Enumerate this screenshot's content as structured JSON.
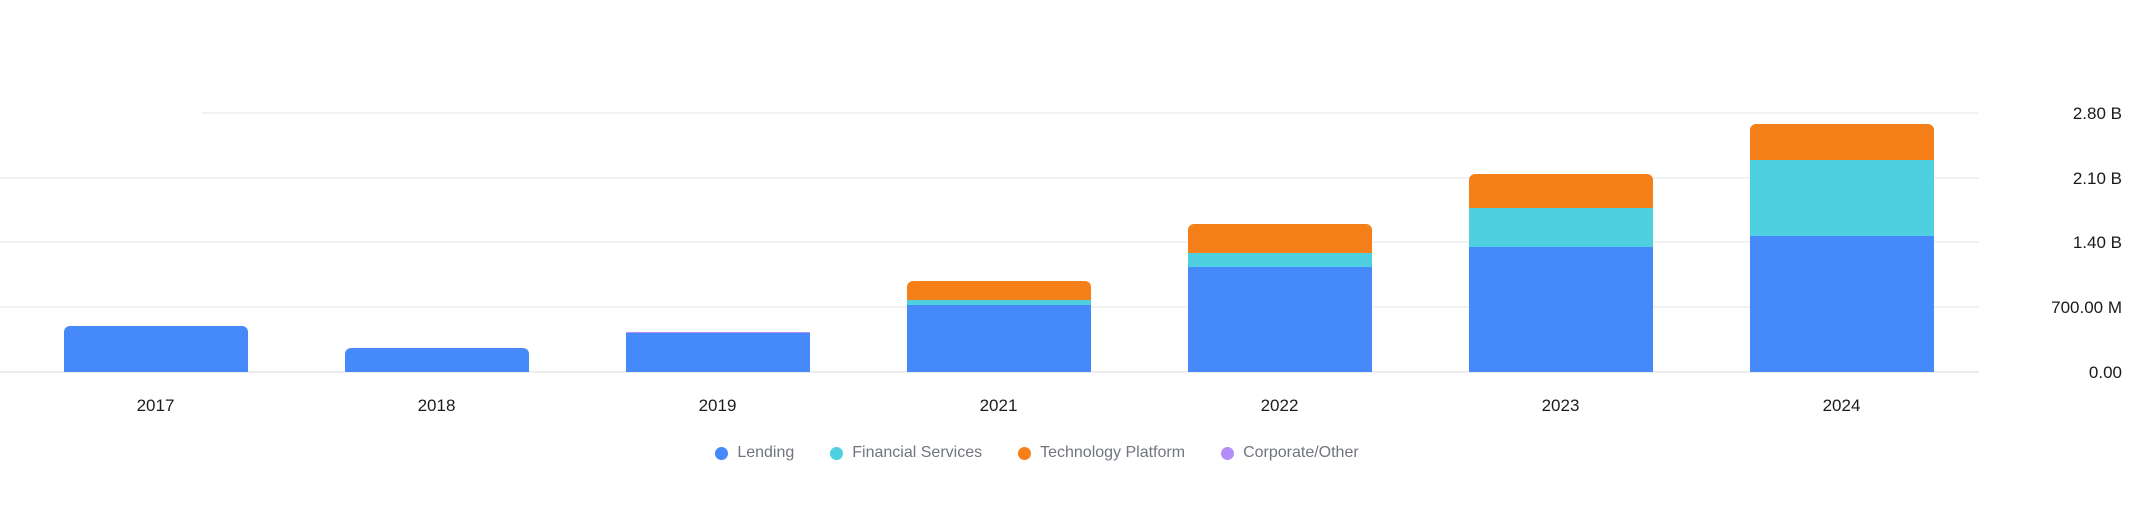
{
  "chart": {
    "background_color": "#ffffff",
    "text_color_axis": "#1c1c1e",
    "text_color_legend": "#71757e",
    "gridline_color": "#f2f2f3",
    "chart_data": {
      "type": "bar",
      "stacked": true,
      "orientation": "vertical",
      "grid": true,
      "unit": "USD",
      "value_scale": "millions",
      "categories": [
        "2017",
        "2018",
        "2019",
        "2021",
        "2022",
        "2023",
        "2024"
      ],
      "series": [
        {
          "name": "Lending",
          "color": "#4689FA",
          "values": [
            500,
            260,
            420,
            720,
            1130,
            1350,
            1470
          ]
        },
        {
          "name": "Financial Services",
          "color": "#4FD0E0",
          "values": [
            0,
            0,
            0,
            60,
            160,
            425,
            820
          ]
        },
        {
          "name": "Technology Platform",
          "color": "#F58019",
          "values": [
            0,
            0,
            0,
            200,
            305,
            360,
            385
          ]
        },
        {
          "name": "Corporate/Other",
          "color": "#B38DF8",
          "values": [
            0,
            0,
            10,
            0,
            0,
            0,
            0
          ]
        }
      ],
      "y_axis": {
        "side": "right",
        "tick_labels": [
          "0.00",
          "700.00 M",
          "1.40 B",
          "2.10 B",
          "2.80 B"
        ],
        "tick_values_millions": [
          0,
          700,
          1400,
          2100,
          2800
        ],
        "ylim_millions": [
          0,
          2800
        ]
      },
      "legend_position": "bottom",
      "legend_entries": [
        "Lending",
        "Financial Services",
        "Technology Platform",
        "Corporate/Other"
      ],
      "title": "",
      "xlabel": "",
      "ylabel": ""
    }
  }
}
